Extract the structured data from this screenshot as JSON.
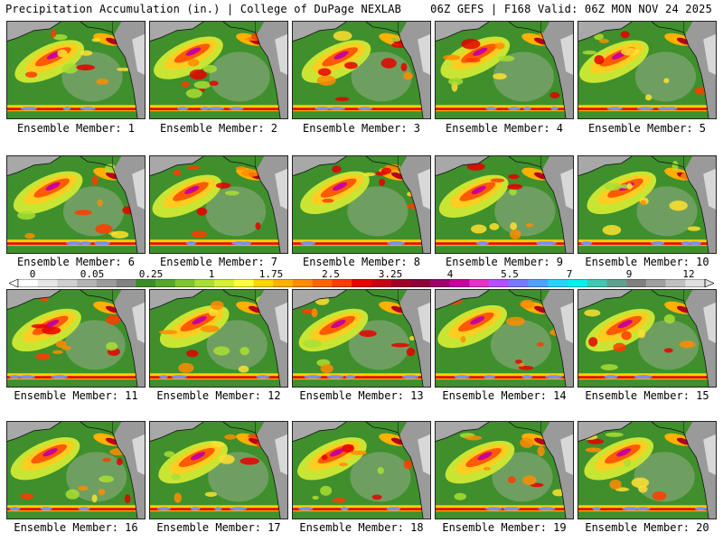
{
  "header": {
    "left": "Precipitation Accumulation (in.) | College of DuPage NEXLAB",
    "right": "06Z GEFS | F168 Valid: 06Z MON NOV 24 2025"
  },
  "colorbar": {
    "ticks": [
      "0",
      "0.05",
      "0.25",
      "1",
      "1.75",
      "2.5",
      "3.25",
      "4",
      "5.5",
      "7",
      "9",
      "12"
    ],
    "colors": [
      "#ffffff",
      "#e6e6e6",
      "#cfcfcf",
      "#b4b4b4",
      "#9b9b9b",
      "#828282",
      "#3c8c28",
      "#56a82c",
      "#7fc531",
      "#a9df32",
      "#d6f034",
      "#ffff3a",
      "#ffd700",
      "#ffb000",
      "#ff8c00",
      "#ff6400",
      "#ff3c00",
      "#e60000",
      "#c80014",
      "#a00028",
      "#8c003c",
      "#a0006e",
      "#c800a0",
      "#e632c8",
      "#b450ff",
      "#7878ff",
      "#50a0ff",
      "#28d2ff",
      "#00f0f0",
      "#40c8b4",
      "#60a090",
      "#808080",
      "#a0a0a0",
      "#c0c0c0",
      "#e0e0e0"
    ]
  },
  "members": [
    {
      "label": "Ensemble Member: 1"
    },
    {
      "label": "Ensemble Member: 2"
    },
    {
      "label": "Ensemble Member: 3"
    },
    {
      "label": "Ensemble Member: 4"
    },
    {
      "label": "Ensemble Member: 5"
    },
    {
      "label": "Ensemble Member: 6"
    },
    {
      "label": "Ensemble Member: 7"
    },
    {
      "label": "Ensemble Member: 8"
    },
    {
      "label": "Ensemble Member: 9"
    },
    {
      "label": "Ensemble Member: 10"
    },
    {
      "label": "Ensemble Member: 11"
    },
    {
      "label": "Ensemble Member: 12"
    },
    {
      "label": "Ensemble Member: 13"
    },
    {
      "label": "Ensemble Member: 14"
    },
    {
      "label": "Ensemble Member: 15"
    },
    {
      "label": "Ensemble Member: 16"
    },
    {
      "label": "Ensemble Member: 17"
    },
    {
      "label": "Ensemble Member: 18"
    },
    {
      "label": "Ensemble Member: 19"
    },
    {
      "label": "Ensemble Member: 20"
    }
  ]
}
